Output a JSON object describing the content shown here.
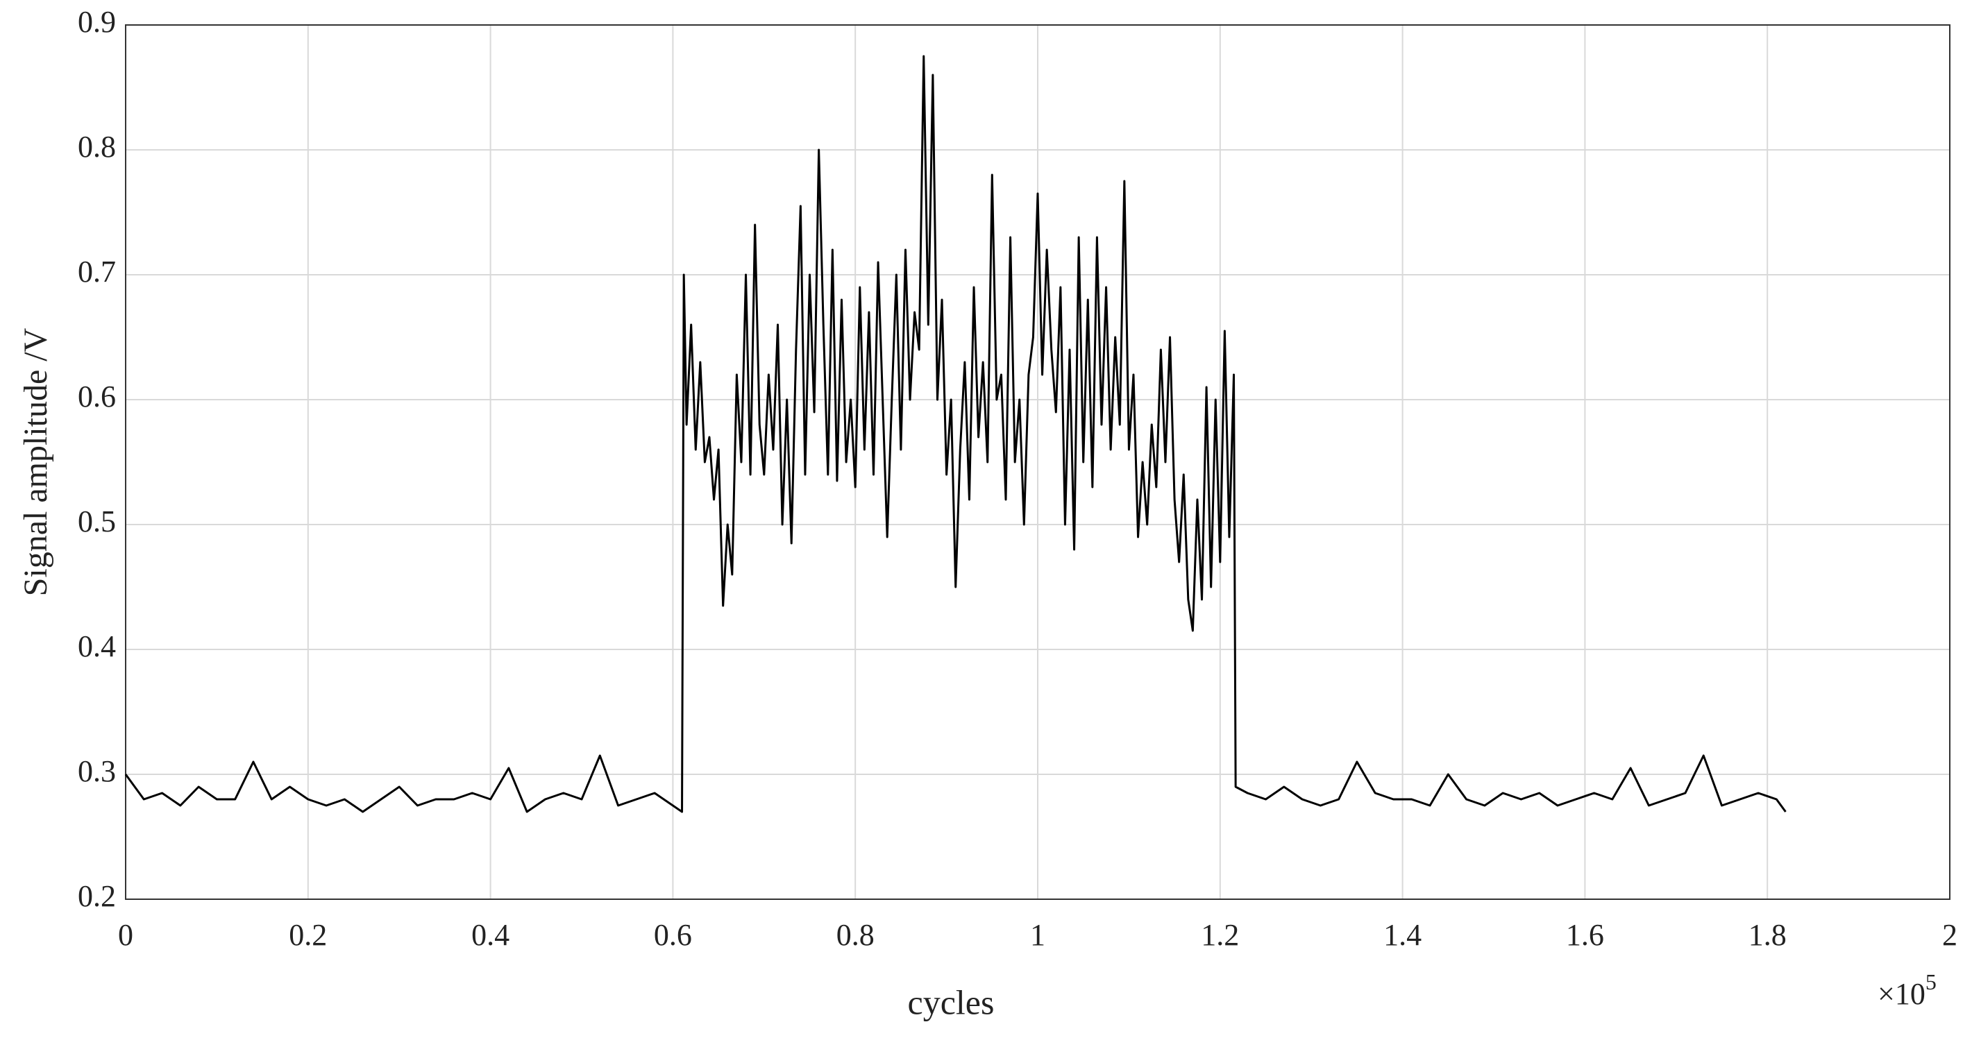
{
  "chart_data": {
    "type": "line",
    "xlabel": "cycles",
    "ylabel": "Signal amplitude /V",
    "x_multiplier": {
      "base": "×10",
      "exponent": "5"
    },
    "xlim": [
      0,
      2
    ],
    "ylim": [
      0.2,
      0.9
    ],
    "xticks": [
      0,
      0.2,
      0.4,
      0.6,
      0.8,
      1,
      1.2,
      1.4,
      1.6,
      1.8,
      2
    ],
    "yticks": [
      0.2,
      0.3,
      0.4,
      0.5,
      0.6,
      0.7,
      0.8,
      0.9
    ],
    "grid": true,
    "x": [
      0,
      0.02,
      0.04,
      0.06,
      0.08,
      0.1,
      0.12,
      0.14,
      0.16,
      0.18,
      0.2,
      0.22,
      0.24,
      0.26,
      0.28,
      0.3,
      0.32,
      0.34,
      0.36,
      0.38,
      0.4,
      0.42,
      0.44,
      0.46,
      0.48,
      0.5,
      0.52,
      0.54,
      0.56,
      0.58,
      0.6,
      0.61,
      0.612,
      0.615,
      0.62,
      0.625,
      0.63,
      0.635,
      0.64,
      0.645,
      0.65,
      0.655,
      0.66,
      0.665,
      0.67,
      0.675,
      0.68,
      0.685,
      0.69,
      0.695,
      0.7,
      0.705,
      0.71,
      0.715,
      0.72,
      0.725,
      0.73,
      0.735,
      0.74,
      0.745,
      0.75,
      0.755,
      0.76,
      0.765,
      0.77,
      0.775,
      0.78,
      0.785,
      0.79,
      0.795,
      0.8,
      0.805,
      0.81,
      0.815,
      0.82,
      0.825,
      0.83,
      0.835,
      0.84,
      0.845,
      0.85,
      0.855,
      0.86,
      0.865,
      0.87,
      0.875,
      0.88,
      0.885,
      0.89,
      0.895,
      0.9,
      0.905,
      0.91,
      0.915,
      0.92,
      0.925,
      0.93,
      0.935,
      0.94,
      0.945,
      0.95,
      0.955,
      0.96,
      0.965,
      0.97,
      0.975,
      0.98,
      0.985,
      0.99,
      0.995,
      1.0,
      1.005,
      1.01,
      1.015,
      1.02,
      1.025,
      1.03,
      1.035,
      1.04,
      1.045,
      1.05,
      1.055,
      1.06,
      1.065,
      1.07,
      1.075,
      1.08,
      1.085,
      1.09,
      1.095,
      1.1,
      1.105,
      1.11,
      1.115,
      1.12,
      1.125,
      1.13,
      1.135,
      1.14,
      1.145,
      1.15,
      1.155,
      1.16,
      1.165,
      1.17,
      1.175,
      1.18,
      1.185,
      1.19,
      1.195,
      1.2,
      1.205,
      1.21,
      1.215,
      1.217,
      1.23,
      1.25,
      1.27,
      1.29,
      1.31,
      1.33,
      1.35,
      1.37,
      1.39,
      1.41,
      1.43,
      1.45,
      1.47,
      1.49,
      1.51,
      1.53,
      1.55,
      1.57,
      1.59,
      1.61,
      1.63,
      1.65,
      1.67,
      1.69,
      1.71,
      1.73,
      1.75,
      1.77,
      1.79,
      1.81,
      1.82
    ],
    "series": [
      {
        "color": "#000000",
        "values": [
          0.3,
          0.28,
          0.285,
          0.275,
          0.29,
          0.28,
          0.28,
          0.31,
          0.28,
          0.29,
          0.28,
          0.275,
          0.28,
          0.27,
          0.28,
          0.29,
          0.275,
          0.28,
          0.28,
          0.285,
          0.28,
          0.305,
          0.27,
          0.28,
          0.285,
          0.28,
          0.315,
          0.275,
          0.28,
          0.285,
          0.275,
          0.27,
          0.7,
          0.58,
          0.66,
          0.56,
          0.63,
          0.55,
          0.57,
          0.52,
          0.56,
          0.435,
          0.5,
          0.46,
          0.62,
          0.55,
          0.7,
          0.54,
          0.74,
          0.58,
          0.54,
          0.62,
          0.56,
          0.66,
          0.5,
          0.6,
          0.485,
          0.64,
          0.755,
          0.54,
          0.7,
          0.59,
          0.8,
          0.66,
          0.54,
          0.72,
          0.535,
          0.68,
          0.55,
          0.6,
          0.53,
          0.69,
          0.56,
          0.67,
          0.54,
          0.71,
          0.6,
          0.49,
          0.6,
          0.7,
          0.56,
          0.72,
          0.6,
          0.67,
          0.64,
          0.875,
          0.66,
          0.86,
          0.6,
          0.68,
          0.54,
          0.6,
          0.45,
          0.56,
          0.63,
          0.52,
          0.69,
          0.57,
          0.63,
          0.55,
          0.78,
          0.6,
          0.62,
          0.52,
          0.73,
          0.55,
          0.6,
          0.5,
          0.62,
          0.65,
          0.765,
          0.62,
          0.72,
          0.64,
          0.59,
          0.69,
          0.5,
          0.64,
          0.48,
          0.73,
          0.55,
          0.68,
          0.53,
          0.73,
          0.58,
          0.69,
          0.56,
          0.65,
          0.58,
          0.775,
          0.56,
          0.62,
          0.49,
          0.55,
          0.5,
          0.58,
          0.53,
          0.64,
          0.55,
          0.65,
          0.52,
          0.47,
          0.54,
          0.44,
          0.415,
          0.52,
          0.44,
          0.61,
          0.45,
          0.6,
          0.47,
          0.655,
          0.49,
          0.62,
          0.29,
          0.285,
          0.28,
          0.29,
          0.28,
          0.275,
          0.28,
          0.31,
          0.285,
          0.28,
          0.28,
          0.275,
          0.3,
          0.28,
          0.275,
          0.285,
          0.28,
          0.285,
          0.275,
          0.28,
          0.285,
          0.28,
          0.305,
          0.275,
          0.28,
          0.285,
          0.315,
          0.275,
          0.28,
          0.285,
          0.28,
          0.27
        ]
      }
    ]
  }
}
